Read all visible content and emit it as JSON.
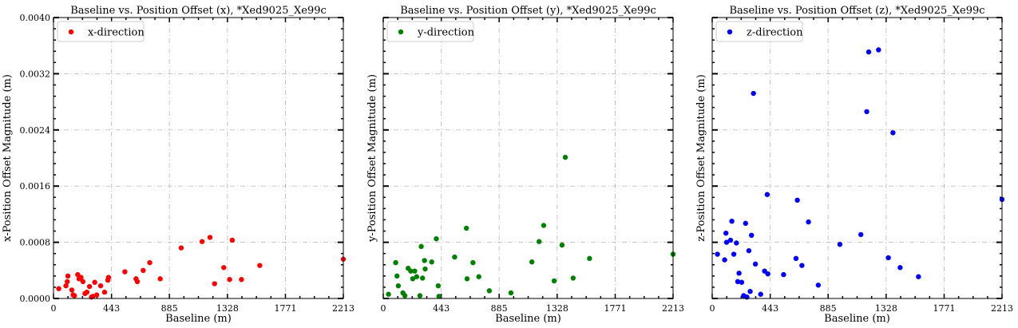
{
  "chart_data": [
    {
      "type": "scatter",
      "title": "Baseline vs. Position Offset (x), *Xed9025_Xe99c",
      "xlabel": "Baseline (m)",
      "ylabel": "x-Position Offset Magnitude (m)",
      "xlim": [
        0,
        2213
      ],
      "ylim": [
        0,
        0.004
      ],
      "xticks": [
        "0",
        "443",
        "885",
        "1328",
        "1771",
        "2213"
      ],
      "yticks": [
        "0.0000",
        "0.0008",
        "0.0016",
        "0.0024",
        "0.0032",
        "0.0040"
      ],
      "show_yticklabels": true,
      "grid": true,
      "legend": "top-left",
      "color": "#ff0000",
      "series": [
        {
          "name": "x-direction",
          "points": [
            [
              40,
              0.00014
            ],
            [
              95,
              0.00018
            ],
            [
              105,
              0.00024
            ],
            [
              110,
              0.00032
            ],
            [
              140,
              0.00012
            ],
            [
              150,
              5e-05
            ],
            [
              160,
              4e-05
            ],
            [
              185,
              0.00034
            ],
            [
              195,
              0.00028
            ],
            [
              210,
              0.0003
            ],
            [
              225,
              0.00024
            ],
            [
              240,
              7e-05
            ],
            [
              255,
              9e-05
            ],
            [
              275,
              0.00017
            ],
            [
              290,
              2e-05
            ],
            [
              300,
              3e-05
            ],
            [
              315,
              0.00023
            ],
            [
              330,
              5e-05
            ],
            [
              360,
              0.00018
            ],
            [
              390,
              9e-05
            ],
            [
              415,
              0.00026
            ],
            [
              420,
              0.0003
            ],
            [
              545,
              0.00038
            ],
            [
              630,
              0.00028
            ],
            [
              640,
              0.00024
            ],
            [
              685,
              0.0004
            ],
            [
              735,
              0.00051
            ],
            [
              815,
              0.00028
            ],
            [
              975,
              0.00072
            ],
            [
              1135,
              0.00081
            ],
            [
              1195,
              0.00087
            ],
            [
              1230,
              0.00021
            ],
            [
              1300,
              0.00044
            ],
            [
              1345,
              0.00027
            ],
            [
              1365,
              0.00083
            ],
            [
              1435,
              0.00027
            ],
            [
              1575,
              0.00047
            ],
            [
              2213,
              0.00056
            ]
          ]
        }
      ]
    },
    {
      "type": "scatter",
      "title": "Baseline vs. Position Offset (y), *Xed9025_Xe99c",
      "xlabel": "Baseline (m)",
      "ylabel": "y-Position Offset Magnitude (m)",
      "xlim": [
        0,
        2213
      ],
      "ylim": [
        0,
        0.004
      ],
      "xticks": [
        "0",
        "443",
        "885",
        "1328",
        "1771",
        "2213"
      ],
      "yticks": [
        "0.0000",
        "0.0008",
        "0.0016",
        "0.0024",
        "0.0032",
        "0.0040"
      ],
      "show_yticklabels": false,
      "grid": true,
      "legend": "top-left",
      "color": "#008000",
      "series": [
        {
          "name": "y-direction",
          "points": [
            [
              40,
              6e-05
            ],
            [
              95,
              0.00051
            ],
            [
              105,
              0.00032
            ],
            [
              115,
              0.00018
            ],
            [
              150,
              8e-05
            ],
            [
              165,
              4e-05
            ],
            [
              190,
              0.00043
            ],
            [
              210,
              0.00039
            ],
            [
              225,
              0.00028
            ],
            [
              240,
              0.00039
            ],
            [
              255,
              0.00031
            ],
            [
              280,
              4e-05
            ],
            [
              290,
              0.00074
            ],
            [
              300,
              0.00029
            ],
            [
              315,
              0.00054
            ],
            [
              320,
              0.00042
            ],
            [
              370,
              0.00052
            ],
            [
              405,
              0.00085
            ],
            [
              420,
              0.00018
            ],
            [
              425,
              3e-05
            ],
            [
              545,
              0.00059
            ],
            [
              635,
              0.001
            ],
            [
              640,
              0.00028
            ],
            [
              685,
              0.00051
            ],
            [
              730,
              0.00031
            ],
            [
              810,
              0.00011
            ],
            [
              975,
              8e-05
            ],
            [
              1135,
              0.00052
            ],
            [
              1190,
              0.00081
            ],
            [
              1225,
              0.00104
            ],
            [
              1305,
              0.00025
            ],
            [
              1365,
              0.00076
            ],
            [
              1390,
              0.00201
            ],
            [
              1450,
              0.00029
            ],
            [
              1575,
              0.00057
            ],
            [
              2213,
              0.00063
            ]
          ]
        }
      ]
    },
    {
      "type": "scatter",
      "title": "Baseline vs. Position Offset (z), *Xed9025_Xe99c",
      "xlabel": "Baseline (m)",
      "ylabel": "z-Position Offset Magnitude (m)",
      "xlim": [
        0,
        2213
      ],
      "ylim": [
        0,
        0.004
      ],
      "xticks": [
        "0",
        "443",
        "885",
        "1328",
        "1771",
        "2213"
      ],
      "yticks": [
        "0.0000",
        "0.0008",
        "0.0016",
        "0.0024",
        "0.0032",
        "0.0040"
      ],
      "show_yticklabels": false,
      "grid": true,
      "legend": "top-left",
      "color": "#0000ff",
      "series": [
        {
          "name": "z-direction",
          "points": [
            [
              40,
              0.00063
            ],
            [
              95,
              0.00055
            ],
            [
              105,
              0.00093
            ],
            [
              110,
              0.0008
            ],
            [
              140,
              0.00083
            ],
            [
              150,
              0.0011
            ],
            [
              165,
              0.00063
            ],
            [
              185,
              0.00079
            ],
            [
              195,
              0.00024
            ],
            [
              205,
              0.00036
            ],
            [
              225,
              0.00023
            ],
            [
              240,
              4e-05
            ],
            [
              255,
              0.00107
            ],
            [
              265,
              2e-05
            ],
            [
              280,
              0.00068
            ],
            [
              290,
              0.0001
            ],
            [
              300,
              0.0009
            ],
            [
              315,
              0.00292
            ],
            [
              330,
              0.00049
            ],
            [
              370,
              6e-05
            ],
            [
              400,
              0.00039
            ],
            [
              420,
              0.00148
            ],
            [
              425,
              0.00035
            ],
            [
              545,
              0.00034
            ],
            [
              640,
              0.00057
            ],
            [
              650,
              0.0014
            ],
            [
              685,
              0.00047
            ],
            [
              735,
              0.00109
            ],
            [
              810,
              0.00019
            ],
            [
              975,
              0.00077
            ],
            [
              1135,
              0.00091
            ],
            [
              1180,
              0.00266
            ],
            [
              1195,
              0.00351
            ],
            [
              1270,
              0.00354
            ],
            [
              1345,
              0.00058
            ],
            [
              1380,
              0.00236
            ],
            [
              1435,
              0.00044
            ],
            [
              1575,
              0.00031
            ],
            [
              2213,
              0.00141
            ]
          ]
        }
      ]
    }
  ]
}
